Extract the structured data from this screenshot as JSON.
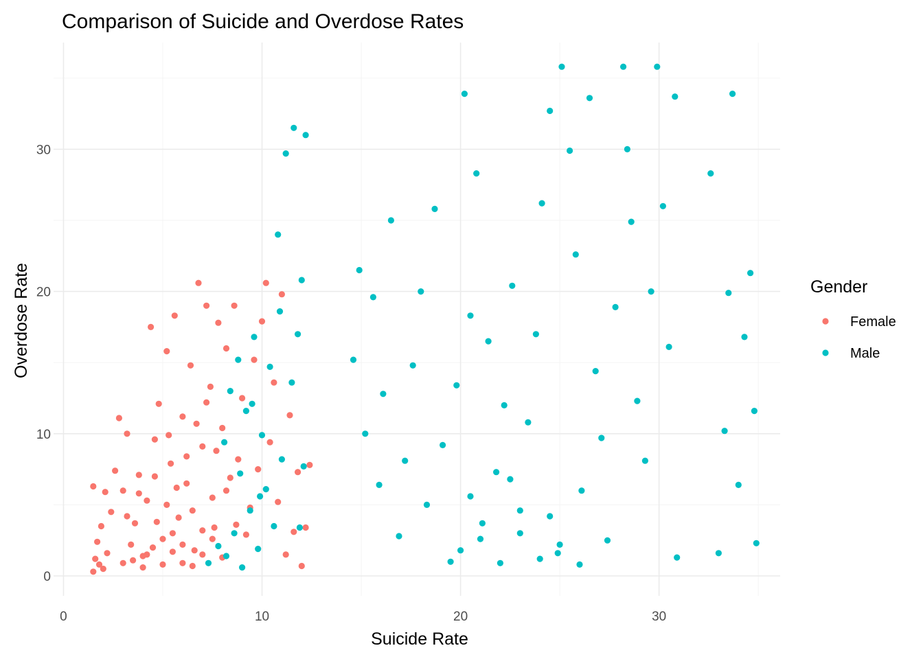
{
  "chart_data": {
    "type": "scatter",
    "title": "Comparison of Suicide and Overdose Rates",
    "xlabel": "Suicide Rate",
    "ylabel": "Overdose Rate",
    "xlim": [
      -0.5,
      36.1
    ],
    "ylim": [
      -1.4,
      37.5
    ],
    "x_ticks": [
      0,
      10,
      20,
      30
    ],
    "y_ticks": [
      0,
      10,
      20,
      30
    ],
    "x_minor": [
      5,
      15,
      25,
      35
    ],
    "y_minor": [
      5,
      15,
      25,
      35
    ],
    "grid": true,
    "legend": {
      "title": "Gender",
      "position": "right"
    },
    "series": [
      {
        "name": "Female",
        "color": "#F8766D",
        "points": [
          [
            1.5,
            0.3
          ],
          [
            1.6,
            1.2
          ],
          [
            1.7,
            2.4
          ],
          [
            1.8,
            0.8
          ],
          [
            1.9,
            3.5
          ],
          [
            2.0,
            0.5
          ],
          [
            2.1,
            5.9
          ],
          [
            2.2,
            1.6
          ],
          [
            1.5,
            6.3
          ],
          [
            2.4,
            4.5
          ],
          [
            2.6,
            7.4
          ],
          [
            2.8,
            11.1
          ],
          [
            3.2,
            10.0
          ],
          [
            3.0,
            6.0
          ],
          [
            3.4,
            2.2
          ],
          [
            3.6,
            3.7
          ],
          [
            3.8,
            7.1
          ],
          [
            4.0,
            1.4
          ],
          [
            4.2,
            5.3
          ],
          [
            4.4,
            17.5
          ],
          [
            4.6,
            9.6
          ],
          [
            4.8,
            12.1
          ],
          [
            5.0,
            2.6
          ],
          [
            5.2,
            15.8
          ],
          [
            5.4,
            7.9
          ],
          [
            5.6,
            18.3
          ],
          [
            5.8,
            4.1
          ],
          [
            6.0,
            11.2
          ],
          [
            6.2,
            6.5
          ],
          [
            6.4,
            14.8
          ],
          [
            6.6,
            1.8
          ],
          [
            6.8,
            20.6
          ],
          [
            7.0,
            9.1
          ],
          [
            7.2,
            19.0
          ],
          [
            7.4,
            13.3
          ],
          [
            7.6,
            3.4
          ],
          [
            7.8,
            17.8
          ],
          [
            8.0,
            10.4
          ],
          [
            8.2,
            16.0
          ],
          [
            8.4,
            6.9
          ],
          [
            8.6,
            19.0
          ],
          [
            8.8,
            8.2
          ],
          [
            9.0,
            12.5
          ],
          [
            9.2,
            2.9
          ],
          [
            9.4,
            4.8
          ],
          [
            9.6,
            15.2
          ],
          [
            9.8,
            7.5
          ],
          [
            10.0,
            17.9
          ],
          [
            10.2,
            20.6
          ],
          [
            10.4,
            9.4
          ],
          [
            10.6,
            13.6
          ],
          [
            10.8,
            5.2
          ],
          [
            11.0,
            19.8
          ],
          [
            11.2,
            1.5
          ],
          [
            11.4,
            11.3
          ],
          [
            11.6,
            3.1
          ],
          [
            11.8,
            7.3
          ],
          [
            12.0,
            0.7
          ],
          [
            12.2,
            3.4
          ],
          [
            12.4,
            7.8
          ],
          [
            3.0,
            0.9
          ],
          [
            3.5,
            1.1
          ],
          [
            4.0,
            0.6
          ],
          [
            4.5,
            2.0
          ],
          [
            5.0,
            0.8
          ],
          [
            5.5,
            3.0
          ],
          [
            6.0,
            2.2
          ],
          [
            6.5,
            4.6
          ],
          [
            7.0,
            1.5
          ],
          [
            7.5,
            5.5
          ],
          [
            4.2,
            1.5
          ],
          [
            4.7,
            3.8
          ],
          [
            5.2,
            5.0
          ],
          [
            5.7,
            6.2
          ],
          [
            6.2,
            8.4
          ],
          [
            6.7,
            10.7
          ],
          [
            7.2,
            12.2
          ],
          [
            7.7,
            8.8
          ],
          [
            8.2,
            6.0
          ],
          [
            8.7,
            3.6
          ],
          [
            5.5,
            1.7
          ],
          [
            6.0,
            0.9
          ],
          [
            6.5,
            0.7
          ],
          [
            7.0,
            3.2
          ],
          [
            7.5,
            2.6
          ],
          [
            8.0,
            1.3
          ],
          [
            3.2,
            4.2
          ],
          [
            3.8,
            5.8
          ],
          [
            4.6,
            7.0
          ],
          [
            5.3,
            9.9
          ]
        ]
      },
      {
        "name": "Male",
        "color": "#00BFC4",
        "points": [
          [
            7.3,
            0.9
          ],
          [
            7.8,
            2.1
          ],
          [
            8.2,
            1.4
          ],
          [
            8.6,
            3.0
          ],
          [
            9.0,
            0.6
          ],
          [
            9.4,
            4.6
          ],
          [
            9.8,
            1.9
          ],
          [
            10.2,
            6.1
          ],
          [
            10.6,
            3.5
          ],
          [
            11.0,
            8.2
          ],
          [
            8.4,
            13.0
          ],
          [
            8.8,
            15.2
          ],
          [
            9.2,
            11.6
          ],
          [
            9.6,
            16.8
          ],
          [
            10.0,
            9.9
          ],
          [
            10.4,
            14.7
          ],
          [
            10.8,
            24.0
          ],
          [
            11.2,
            29.7
          ],
          [
            11.6,
            31.5
          ],
          [
            12.0,
            20.8
          ],
          [
            11.5,
            13.6
          ],
          [
            11.8,
            17.0
          ],
          [
            12.2,
            31.0
          ],
          [
            12.1,
            7.7
          ],
          [
            11.9,
            3.4
          ],
          [
            10.9,
            18.6
          ],
          [
            9.9,
            5.6
          ],
          [
            9.5,
            12.1
          ],
          [
            8.9,
            7.2
          ],
          [
            8.1,
            9.4
          ],
          [
            14.6,
            15.2
          ],
          [
            14.9,
            21.5
          ],
          [
            15.2,
            10.0
          ],
          [
            15.6,
            19.6
          ],
          [
            15.9,
            6.4
          ],
          [
            16.1,
            12.8
          ],
          [
            16.5,
            25.0
          ],
          [
            16.9,
            2.8
          ],
          [
            17.2,
            8.1
          ],
          [
            17.6,
            14.8
          ],
          [
            18.0,
            20.0
          ],
          [
            18.3,
            5.0
          ],
          [
            18.7,
            25.8
          ],
          [
            19.1,
            9.2
          ],
          [
            19.5,
            1.0
          ],
          [
            19.8,
            13.4
          ],
          [
            20.2,
            33.9
          ],
          [
            20.5,
            18.3
          ],
          [
            20.8,
            28.3
          ],
          [
            21.1,
            3.7
          ],
          [
            21.4,
            16.5
          ],
          [
            21.8,
            7.3
          ],
          [
            22.2,
            12.0
          ],
          [
            22.6,
            20.4
          ],
          [
            23.0,
            4.6
          ],
          [
            23.4,
            10.8
          ],
          [
            23.8,
            17.0
          ],
          [
            24.1,
            26.2
          ],
          [
            24.5,
            32.7
          ],
          [
            24.9,
            1.6
          ],
          [
            25.1,
            35.8
          ],
          [
            25.5,
            29.9
          ],
          [
            25.8,
            22.6
          ],
          [
            26.1,
            6.0
          ],
          [
            26.5,
            33.6
          ],
          [
            26.8,
            14.4
          ],
          [
            27.1,
            9.7
          ],
          [
            27.4,
            2.5
          ],
          [
            27.8,
            18.9
          ],
          [
            28.2,
            35.8
          ],
          [
            28.4,
            30.0
          ],
          [
            28.6,
            24.9
          ],
          [
            28.9,
            12.3
          ],
          [
            29.3,
            8.1
          ],
          [
            29.6,
            20.0
          ],
          [
            29.9,
            35.8
          ],
          [
            30.2,
            26.0
          ],
          [
            30.5,
            16.1
          ],
          [
            30.8,
            33.7
          ],
          [
            30.9,
            1.3
          ],
          [
            32.6,
            28.3
          ],
          [
            33.0,
            1.6
          ],
          [
            33.3,
            10.2
          ],
          [
            33.5,
            19.9
          ],
          [
            33.7,
            33.9
          ],
          [
            34.0,
            6.4
          ],
          [
            34.3,
            16.8
          ],
          [
            34.6,
            21.3
          ],
          [
            34.8,
            11.6
          ],
          [
            34.9,
            2.3
          ],
          [
            20.0,
            1.8
          ],
          [
            21.0,
            2.6
          ],
          [
            22.0,
            0.9
          ],
          [
            23.0,
            3.0
          ],
          [
            24.0,
            1.2
          ],
          [
            25.0,
            2.2
          ],
          [
            26.0,
            0.8
          ],
          [
            20.5,
            5.6
          ],
          [
            22.5,
            6.8
          ],
          [
            24.5,
            4.2
          ]
        ]
      }
    ]
  }
}
